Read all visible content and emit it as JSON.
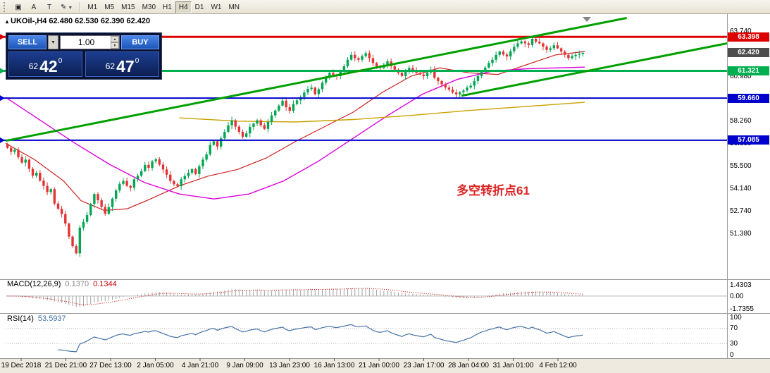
{
  "toolbar": {
    "tools": [
      {
        "name": "chart-tool",
        "glyph": "▣"
      },
      {
        "name": "text-tool",
        "glyph": "A"
      },
      {
        "name": "label-tool",
        "glyph": "T"
      },
      {
        "name": "drawing-tool",
        "glyph": "✎",
        "dropdown": true
      }
    ],
    "timeframes": [
      {
        "label": "M1"
      },
      {
        "label": "M5"
      },
      {
        "label": "M15"
      },
      {
        "label": "M30"
      },
      {
        "label": "H1"
      },
      {
        "label": "H4",
        "active": true
      },
      {
        "label": "D1"
      },
      {
        "label": "W1"
      },
      {
        "label": "MN"
      }
    ]
  },
  "chart": {
    "title_symbol": "UKOil-,H4",
    "title_ohlc": "62.480 62.530 62.390 62.420"
  },
  "trade_panel": {
    "sell_label": "SELL",
    "buy_label": "BUY",
    "volume": "1.00",
    "bid": {
      "int": "62",
      "pips": "42",
      "pipette": "0"
    },
    "ask": {
      "int": "62",
      "pips": "47",
      "pipette": "0"
    }
  },
  "annotation": {
    "text": "多空转折点61",
    "color": "#dd2222"
  },
  "chart_data": {
    "type": "candlestick",
    "symbol": "UKOil-",
    "timeframe": "H4",
    "price_range": {
      "min": 48.6,
      "max": 64.7
    },
    "up_color": "#00a651",
    "down_color": "#e23434",
    "closes": [
      56.62,
      56.38,
      56.5,
      56.05,
      55.72,
      55.9,
      55.34,
      54.92,
      55.1,
      54.62,
      54.3,
      53.92,
      54.1,
      53.22,
      52.9,
      52.58,
      52.0,
      51.2,
      50.62,
      50.18,
      51.75,
      52.1,
      52.52,
      53.2,
      53.8,
      53.42,
      53.02,
      52.6,
      53.0,
      53.52,
      54.02,
      54.42,
      54.6,
      54.3,
      54.18,
      54.7,
      54.92,
      55.2,
      55.58,
      55.4,
      55.8,
      55.92,
      55.6,
      55.3,
      54.98,
      54.6,
      54.4,
      54.28,
      54.7,
      54.9,
      55.1,
      55.32,
      55.02,
      55.5,
      55.9,
      56.22,
      56.8,
      57.02,
      56.7,
      57.2,
      57.6,
      58.0,
      58.3,
      57.92,
      57.6,
      57.3,
      57.5,
      57.9,
      58.1,
      58.3,
      58.0,
      57.78,
      58.2,
      58.6,
      58.9,
      59.2,
      59.5,
      59.1,
      58.88,
      59.3,
      59.52,
      59.72,
      60.0,
      60.22,
      60.3,
      59.9,
      60.2,
      60.6,
      60.9,
      61.2,
      61.08,
      61.0,
      61.3,
      61.6,
      62.0,
      62.3,
      62.1,
      62.0,
      62.22,
      62.4,
      62.1,
      61.8,
      61.6,
      61.5,
      61.7,
      61.9,
      61.6,
      61.4,
      61.2,
      61.0,
      61.3,
      61.5,
      61.32,
      61.2,
      61.1,
      61.0,
      61.22,
      61.4,
      60.9,
      60.7,
      60.5,
      60.3,
      60.18,
      60.0,
      59.88,
      60.02,
      60.12,
      60.3,
      60.42,
      60.7,
      61.0,
      61.3,
      61.52,
      61.8,
      62.0,
      62.3,
      62.5,
      62.32,
      62.2,
      62.52,
      62.8,
      63.0,
      63.12,
      63.0,
      62.9,
      63.28,
      63.1,
      63.0,
      62.8,
      62.6,
      62.7,
      62.88,
      62.7,
      62.5,
      62.3,
      62.1,
      62.22,
      62.3,
      62.35,
      62.42
    ],
    "last_price": 62.42,
    "moving_averages": [
      {
        "name": "ma-fast",
        "color": "#cc2222",
        "width": 1.2,
        "points": [
          [
            0,
            56.9
          ],
          [
            0.05,
            55.9
          ],
          [
            0.1,
            54.6
          ],
          [
            0.13,
            53.4
          ],
          [
            0.17,
            52.8
          ],
          [
            0.21,
            52.9
          ],
          [
            0.25,
            53.5
          ],
          [
            0.3,
            54.3
          ],
          [
            0.35,
            54.9
          ],
          [
            0.4,
            55.3
          ],
          [
            0.45,
            56.0
          ],
          [
            0.5,
            57.0
          ],
          [
            0.55,
            57.9
          ],
          [
            0.6,
            58.8
          ],
          [
            0.65,
            60.0
          ],
          [
            0.7,
            61.0
          ],
          [
            0.75,
            61.5
          ],
          [
            0.8,
            61.2
          ],
          [
            0.85,
            61.1
          ],
          [
            0.9,
            61.7
          ],
          [
            0.95,
            62.3
          ],
          [
            1,
            62.5
          ]
        ]
      },
      {
        "name": "ma-mid",
        "color": "#dd00dd",
        "width": 1.4,
        "points": [
          [
            0,
            59.7
          ],
          [
            0.06,
            58.3
          ],
          [
            0.12,
            56.9
          ],
          [
            0.18,
            55.6
          ],
          [
            0.24,
            54.5
          ],
          [
            0.3,
            53.8
          ],
          [
            0.36,
            53.5
          ],
          [
            0.42,
            53.8
          ],
          [
            0.48,
            54.6
          ],
          [
            0.54,
            55.8
          ],
          [
            0.6,
            57.2
          ],
          [
            0.66,
            58.6
          ],
          [
            0.72,
            59.9
          ],
          [
            0.78,
            60.8
          ],
          [
            0.84,
            61.3
          ],
          [
            0.9,
            61.45
          ],
          [
            1,
            61.55
          ]
        ]
      },
      {
        "name": "ma-slow",
        "color": "#c8a200",
        "width": 1.4,
        "points": [
          [
            0.3,
            58.45
          ],
          [
            0.4,
            58.25
          ],
          [
            0.5,
            58.2
          ],
          [
            0.6,
            58.35
          ],
          [
            0.7,
            58.6
          ],
          [
            0.8,
            58.9
          ],
          [
            0.9,
            59.15
          ],
          [
            1,
            59.4
          ]
        ]
      }
    ],
    "trendlines": [
      {
        "x1": 0.0,
        "p1": 57.05,
        "x2": 0.861,
        "p2": 64.55,
        "color": "#00a000",
        "width": 3
      },
      {
        "x1": 0.632,
        "p1": 59.8,
        "x2": 1.0,
        "p2": 63.0,
        "color": "#00a000",
        "width": 3
      }
    ],
    "hlines": [
      {
        "price": 63.398,
        "color": "#dd0000",
        "width": 3,
        "badge": "63.398"
      },
      {
        "price": 61.321,
        "color": "#00b050",
        "width": 3,
        "badge": "61.321"
      },
      {
        "price": 59.66,
        "color": "#0000cc",
        "width": 2,
        "badge": "59.660"
      },
      {
        "price": 57.085,
        "color": "#0000cc",
        "width": 2,
        "badge": "57.085"
      }
    ],
    "current_badge": {
      "price": 62.42,
      "label": "62.420",
      "color": "#4d4d4d"
    },
    "y_ticks": [
      "63.740",
      "60.980",
      "58.260",
      "56.880",
      "55.500",
      "54.140",
      "52.740",
      "51.380"
    ],
    "macd": {
      "params": "MACD(12,26,9)",
      "value": "0.1370",
      "signal_value": "0.1344",
      "axis_max": 1.4303,
      "axis_min": -1.7355,
      "axis_labels": [
        "1.4303",
        "0.00",
        "-1.7355"
      ],
      "hist_color": "#a0a0a0",
      "signal_color": "#cc0000"
    },
    "rsi": {
      "params": "RSI(14)",
      "value": "53.5937",
      "axis_labels": [
        "100",
        "70",
        "30",
        "0"
      ],
      "levels": [
        70,
        30
      ],
      "color": "#4572a7"
    },
    "x_labels": [
      "19 Dec 2018",
      "21 Dec 21:00",
      "27 Dec 13:00",
      "2 Jan 05:00",
      "4 Jan 21:00",
      "9 Jan 09:00",
      "13 Jan 23:00",
      "16 Jan 13:00",
      "21 Jan 00:00",
      "23 Jan 17:00",
      "28 Jan 04:00",
      "31 Jan 01:00",
      "4 Feb 12:00"
    ]
  }
}
